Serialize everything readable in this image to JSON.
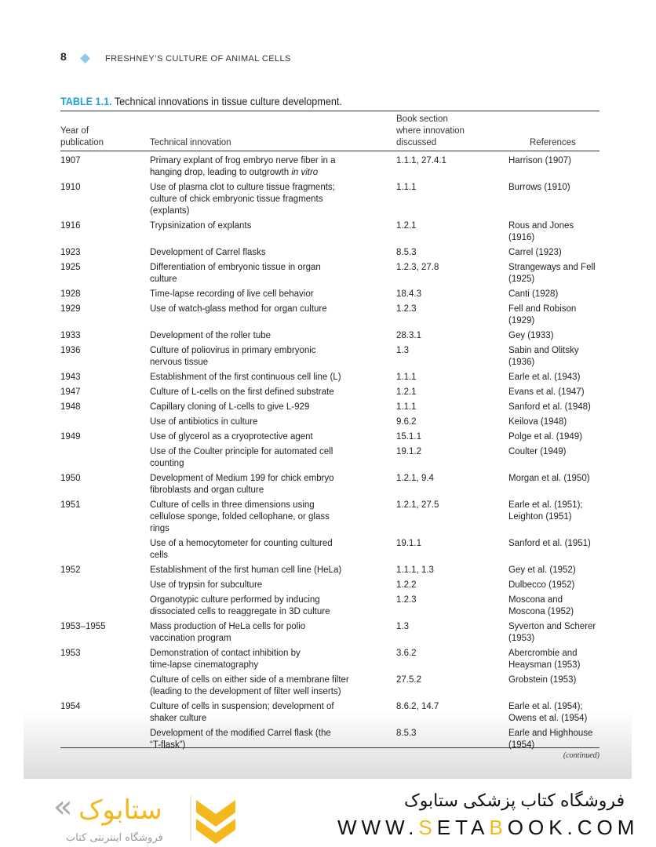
{
  "header": {
    "page_number": "8",
    "running_title": "FRESHNEY’S CULTURE OF ANIMAL CELLS"
  },
  "table": {
    "label": "TABLE 1.1.",
    "caption": "Technical innovations in tissue culture development.",
    "columns": {
      "year": [
        "Year of",
        "publication"
      ],
      "innovation": [
        "Technical innovation"
      ],
      "section": [
        "Book section",
        "where innovation",
        "discussed"
      ],
      "references": [
        "References"
      ]
    },
    "rows": [
      {
        "year": "1907",
        "innovation": [
          "Primary explant of frog embryo nerve fiber in a",
          "hanging drop, leading to outgrowth in vitro"
        ],
        "section": "1.1.1, 27.4.1",
        "references": [
          "Harrison (1907)"
        ]
      },
      {
        "year": "1910",
        "innovation": [
          "Use of plasma clot to culture tissue fragments;",
          "culture of chick embryonic tissue fragments",
          "(explants)"
        ],
        "section": "1.1.1",
        "references": [
          "Burrows (1910)"
        ]
      },
      {
        "year": "1916",
        "innovation": [
          "Trypsinization of explants"
        ],
        "section": "1.2.1",
        "references": [
          "Rous and Jones",
          "(1916)"
        ]
      },
      {
        "year": "1923",
        "innovation": [
          "Development of Carrel flasks"
        ],
        "section": "8.5.3",
        "references": [
          "Carrel (1923)"
        ]
      },
      {
        "year": "1925",
        "innovation": [
          "Differentiation of embryonic tissue in organ",
          "culture"
        ],
        "section": "1.2.3, 27.8",
        "references": [
          "Strangeways and Fell",
          "(1925)"
        ]
      },
      {
        "year": "1928",
        "innovation": [
          "Time-lapse recording of live cell behavior"
        ],
        "section": "18.4.3",
        "references": [
          "Canti (1928)"
        ]
      },
      {
        "year": "1929",
        "innovation": [
          "Use of watch-glass method for organ culture"
        ],
        "section": "1.2.3",
        "references": [
          "Fell and Robison",
          "(1929)"
        ]
      },
      {
        "year": "1933",
        "innovation": [
          "Development of the roller tube"
        ],
        "section": "28.3.1",
        "references": [
          "Gey (1933)"
        ]
      },
      {
        "year": "1936",
        "innovation": [
          "Culture of poliovirus in primary embryonic",
          "nervous tissue"
        ],
        "section": "1.3",
        "references": [
          "Sabin and Olitsky",
          "(1936)"
        ]
      },
      {
        "year": "1943",
        "innovation": [
          "Establishment of the first continuous cell line (L)"
        ],
        "section": "1.1.1",
        "references": [
          "Earle et al. (1943)"
        ]
      },
      {
        "year": "1947",
        "innovation": [
          "Culture of L-cells on the first defined substrate"
        ],
        "section": "1.2.1",
        "references": [
          "Evans et al. (1947)"
        ]
      },
      {
        "year": "1948",
        "innovation": [
          "Capillary cloning of L-cells to give L-929"
        ],
        "section": "1.1.1",
        "references": [
          "Sanford et al. (1948)"
        ]
      },
      {
        "year": "",
        "innovation": [
          "Use of antibiotics in culture"
        ],
        "section": "9.6.2",
        "references": [
          "Keilova (1948)"
        ]
      },
      {
        "year": "1949",
        "innovation": [
          "Use of glycerol as a cryoprotective agent"
        ],
        "section": "15.1.1",
        "references": [
          "Polge et al. (1949)"
        ]
      },
      {
        "year": "",
        "innovation": [
          "Use of the Coulter principle for automated cell",
          "counting"
        ],
        "section": "19.1.2",
        "references": [
          "Coulter (1949)"
        ]
      },
      {
        "year": "1950",
        "innovation": [
          "Development of Medium 199 for chick embryo",
          "fibroblasts and organ culture"
        ],
        "section": "1.2.1, 9.4",
        "references": [
          "Morgan et al. (1950)"
        ]
      },
      {
        "year": "1951",
        "innovation": [
          "Culture of cells in three dimensions using",
          "cellulose sponge, folded cellophane, or glass",
          "rings"
        ],
        "section": "1.2.1, 27.5",
        "references": [
          "Earle et al. (1951);",
          "Leighton (1951)"
        ]
      },
      {
        "year": "",
        "innovation": [
          "Use of a hemocytometer for counting cultured",
          "cells"
        ],
        "section": "19.1.1",
        "references": [
          "Sanford et al. (1951)"
        ]
      },
      {
        "year": "1952",
        "innovation": [
          "Establishment of the first human cell line (HeLa)"
        ],
        "section": "1.1.1, 1.3",
        "references": [
          "Gey et al. (1952)"
        ]
      },
      {
        "year": "",
        "innovation": [
          "Use of trypsin for subculture"
        ],
        "section": "1.2.2",
        "references": [
          "Dulbecco (1952)"
        ]
      },
      {
        "year": "",
        "innovation": [
          "Organotypic culture performed by inducing",
          "dissociated cells to reaggregate in 3D culture"
        ],
        "section": "1.2.3",
        "references": [
          "Moscona and",
          "Moscona (1952)"
        ]
      },
      {
        "year": "1953–1955",
        "innovation": [
          "Mass production of HeLa cells for polio",
          "vaccination program"
        ],
        "section": "1.3",
        "references": [
          "Syverton and Scherer",
          "(1953)"
        ]
      },
      {
        "year": "1953",
        "innovation": [
          "Demonstration of contact inhibition by",
          "time-lapse cinematography"
        ],
        "section": "3.6.2",
        "references": [
          "Abercrombie and",
          "Heaysman (1953)"
        ]
      },
      {
        "year": "",
        "innovation": [
          "Culture of cells on either side of a membrane filter",
          "(leading to the development of filter well inserts)"
        ],
        "section": "27.5.2",
        "references": [
          "Grobstein (1953)"
        ]
      },
      {
        "year": "1954",
        "innovation": [
          "Culture of cells in suspension; development of",
          "shaker culture"
        ],
        "section": "8.6.2, 14.7",
        "references": [
          "Earle et al. (1954);",
          "Owens et al. (1954)"
        ]
      },
      {
        "year": "",
        "innovation": [
          "Development of the modified Carrel flask (the",
          "“T-flask”)"
        ],
        "section": "8.5.3",
        "references": [
          "Earle and Highhouse",
          "(1954)"
        ]
      }
    ],
    "continued": "(continued)"
  },
  "watermark": {
    "store_name_fa": "فروشگاه کتاب پزشکی ستابوک",
    "site_parts": [
      "WWW.",
      "S",
      "ETA",
      "B",
      "OOK.COM"
    ],
    "logo_text_fa": "فروشگاه اینترنتی کتاب",
    "logo_mark": "ستابوک",
    "accent": "#f3b81c",
    "title_color": "#1ea0d8"
  }
}
